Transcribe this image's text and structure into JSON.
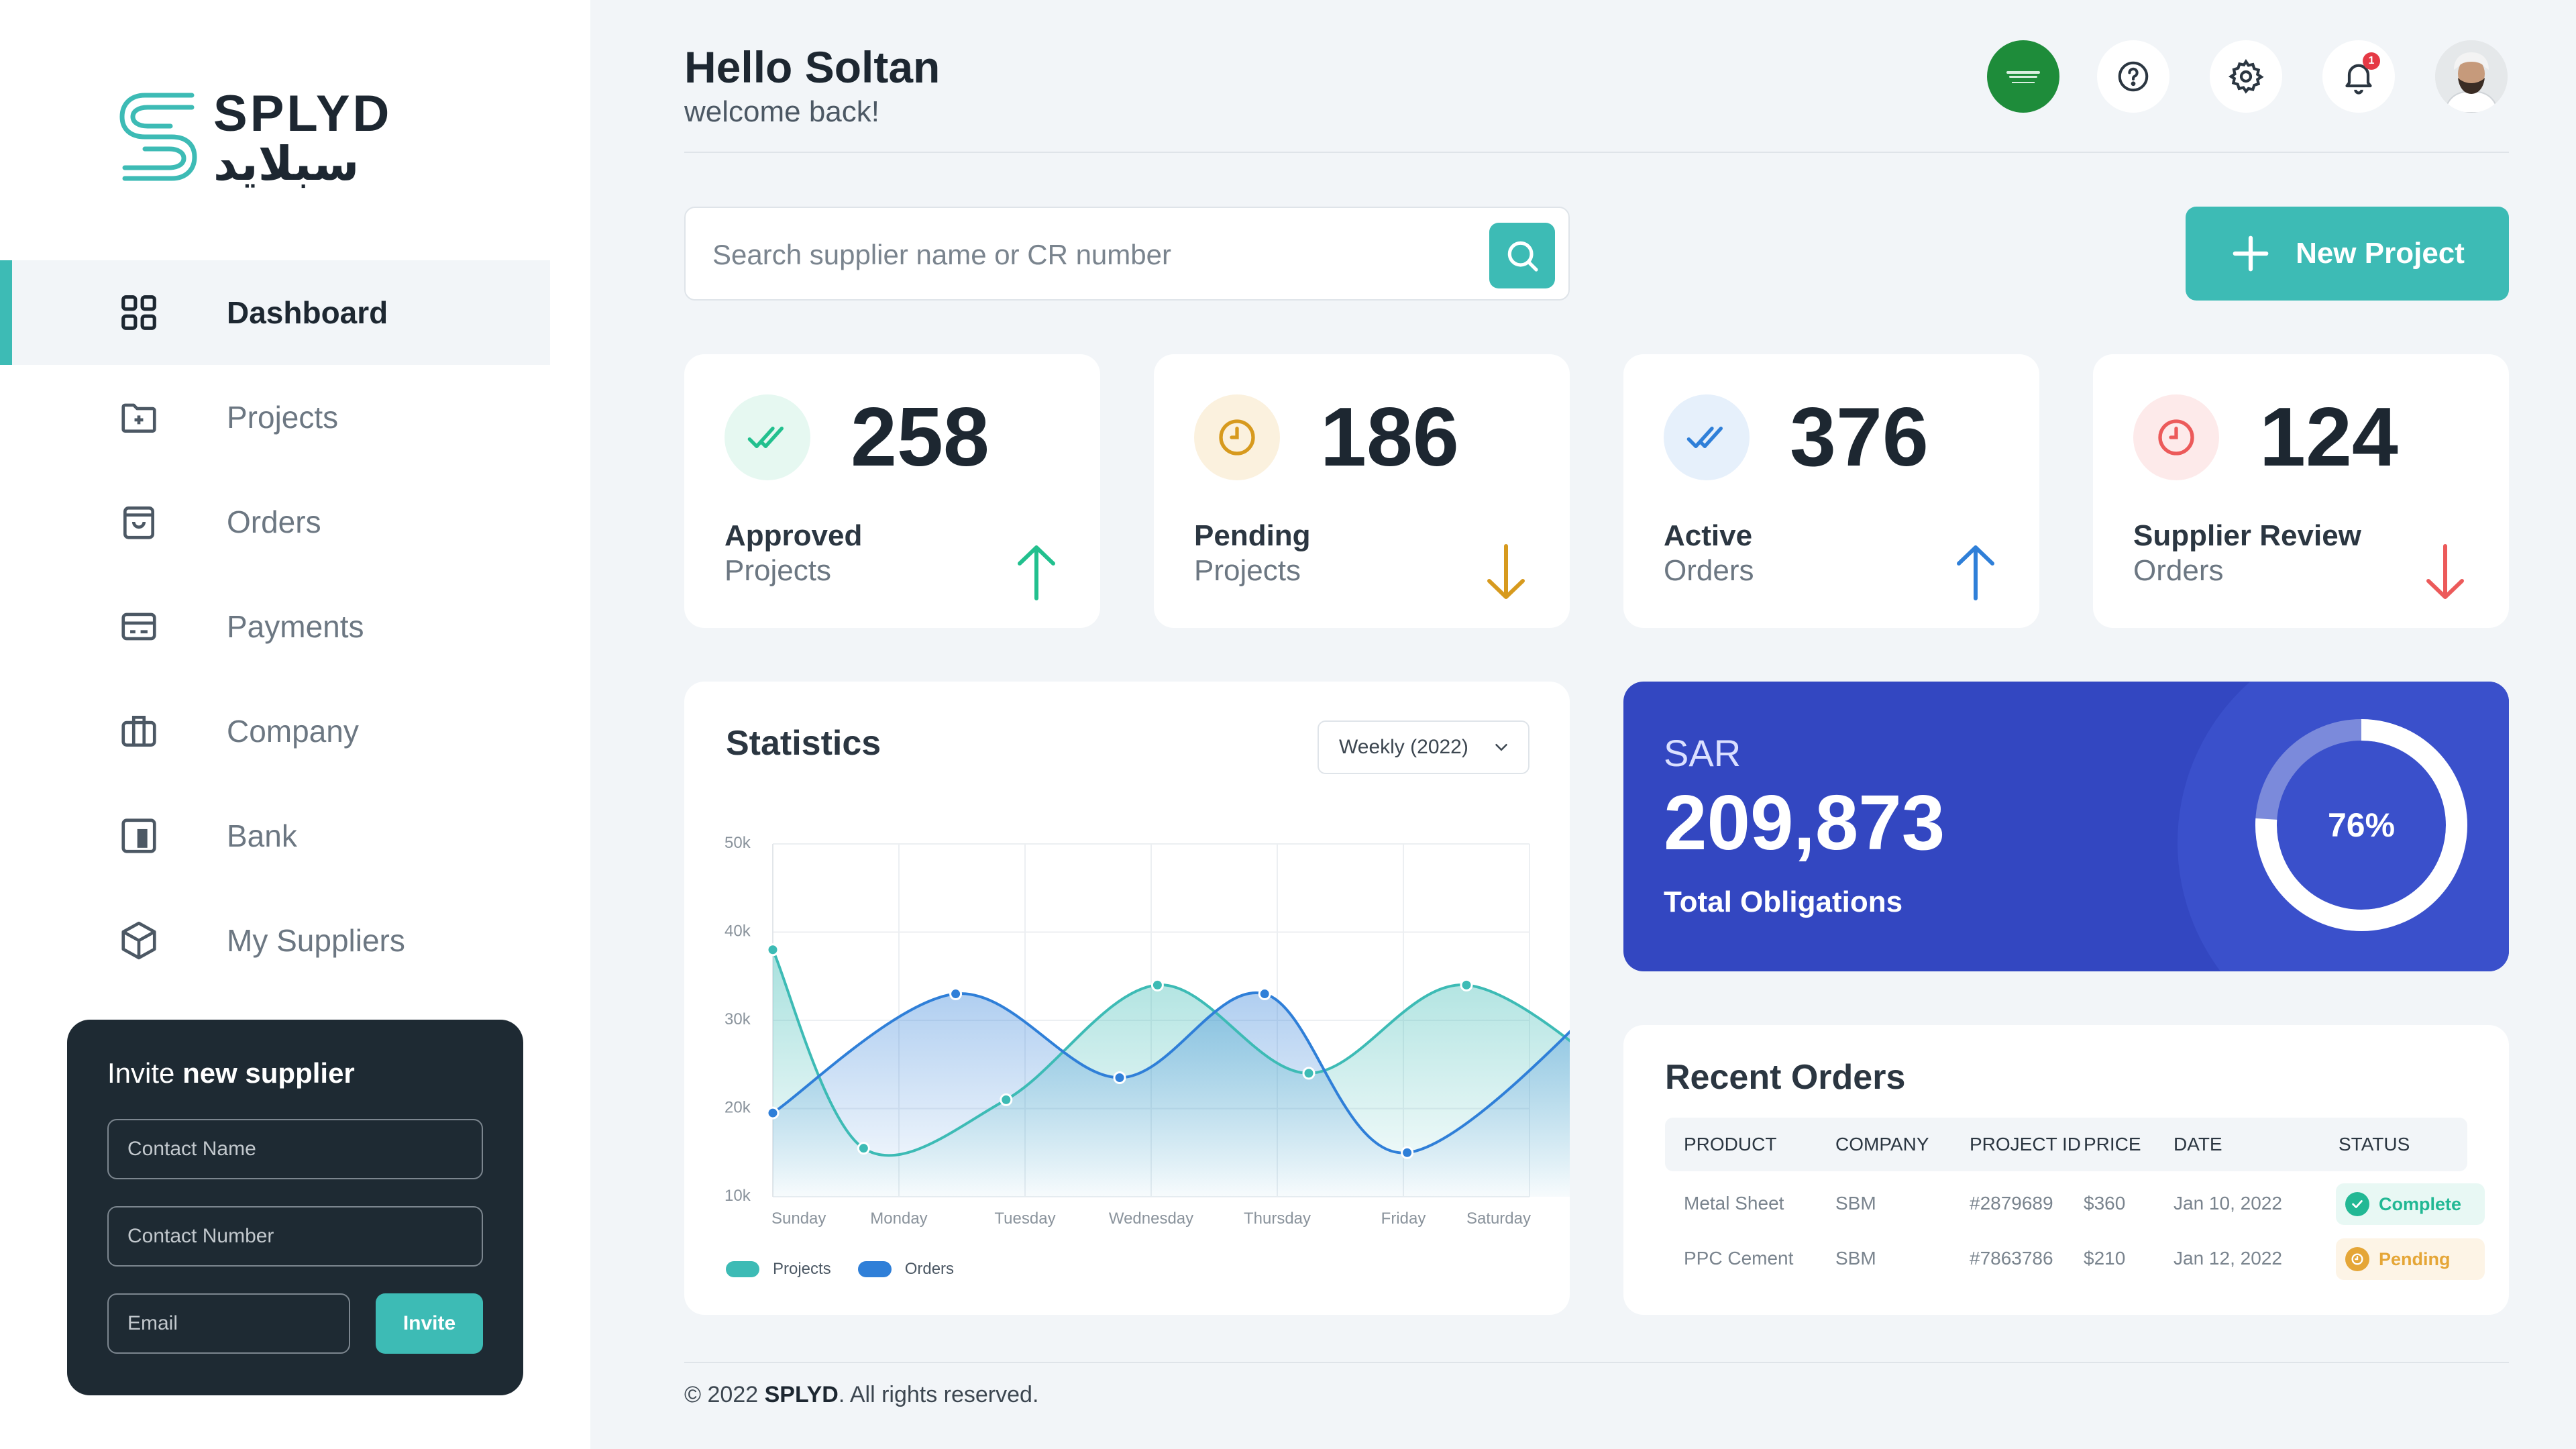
{
  "brand": {
    "name_en": "SPLYD",
    "name_ar": "سبلايد"
  },
  "sidebar": {
    "items": [
      {
        "label": "Dashboard",
        "icon": "grid-icon",
        "active": true
      },
      {
        "label": "Projects",
        "icon": "folder-plus-icon"
      },
      {
        "label": "Orders",
        "icon": "shopping-bag-icon"
      },
      {
        "label": "Payments",
        "icon": "credit-card-icon"
      },
      {
        "label": "Company",
        "icon": "briefcase-icon"
      },
      {
        "label": "Bank",
        "icon": "bank-icon"
      },
      {
        "label": "My Suppliers",
        "icon": "box-icon"
      }
    ]
  },
  "invite": {
    "title_prefix": "Invite ",
    "title_bold": "new supplier",
    "contact_name_placeholder": "Contact Name",
    "contact_number_placeholder": "Contact Number",
    "email_placeholder": "Email",
    "button": "Invite"
  },
  "header": {
    "title": "Hello Soltan",
    "subtitle": "welcome back!",
    "notifications": "1",
    "icons": [
      "saudi-flag-icon",
      "help-icon",
      "gear-icon",
      "bell-icon",
      "user-avatar"
    ]
  },
  "search": {
    "placeholder": "Search supplier name or CR number"
  },
  "new_project": {
    "label": "New Project"
  },
  "stats": [
    {
      "value": "258",
      "label1": "Approved",
      "label2": "Projects",
      "trend": "up",
      "color": "#22c08e",
      "bg": "#e6f8f1"
    },
    {
      "value": "186",
      "label1": "Pending",
      "label2": "Projects",
      "trend": "down",
      "color": "#d79a1e",
      "bg": "#fbf1de"
    },
    {
      "value": "376",
      "label1": "Active",
      "label2": "Orders",
      "trend": "up",
      "color": "#2f7fd8",
      "bg": "#e6f0fb"
    },
    {
      "value": "124",
      "label1": "Supplier Review",
      "label2": "Orders",
      "trend": "down",
      "color": "#ec5a5a",
      "bg": "#fdeaea"
    }
  ],
  "statistics": {
    "title": "Statistics",
    "period": "Weekly (2022)"
  },
  "chart_data": {
    "type": "area",
    "categories": [
      "Sunday",
      "Monday",
      "Tuesday",
      "Wednesday",
      "Thursday",
      "Friday",
      "Saturday"
    ],
    "y_ticks": [
      "50k",
      "40k",
      "30k",
      "20k",
      "10k"
    ],
    "ylim": [
      10000,
      50000
    ],
    "grid": true,
    "legend": "bottom-left",
    "series": [
      {
        "name": "Projects",
        "color": "#3dbbb5",
        "x": [
          0,
          0.72,
          1.85,
          3.05,
          4.25,
          5.5,
          6.95
        ],
        "values": [
          38000,
          15500,
          21000,
          34000,
          24000,
          34000,
          20500
        ]
      },
      {
        "name": "Orders",
        "color": "#2f7fd8",
        "x": [
          0,
          1.45,
          2.75,
          3.9,
          5.03,
          6.95
        ],
        "values": [
          19500,
          33000,
          23500,
          33000,
          15000,
          37500
        ]
      }
    ]
  },
  "obligations": {
    "currency": "SAR",
    "value": "209,873",
    "label": "Total Obligations",
    "percent": "76%",
    "percent_value": 76
  },
  "recent_orders": {
    "title": "Recent Orders",
    "columns": [
      "PRODUCT",
      "COMPANY",
      "PROJECT ID",
      "PRICE",
      "DATE",
      "STATUS"
    ],
    "rows": [
      {
        "product": "Metal Sheet",
        "company": "SBM",
        "project_id": "#2879689",
        "price": "$360",
        "date": "Jan 10, 2022",
        "status": "Complete"
      },
      {
        "product": "PPC Cement",
        "company": "SBM",
        "project_id": "#7863786",
        "price": "$210",
        "date": "Jan 12, 2022",
        "status": "Pending"
      }
    ]
  },
  "footer": {
    "prefix": "© 2022 ",
    "brand": "SPLYD",
    "suffix": ". All rights reserved."
  }
}
